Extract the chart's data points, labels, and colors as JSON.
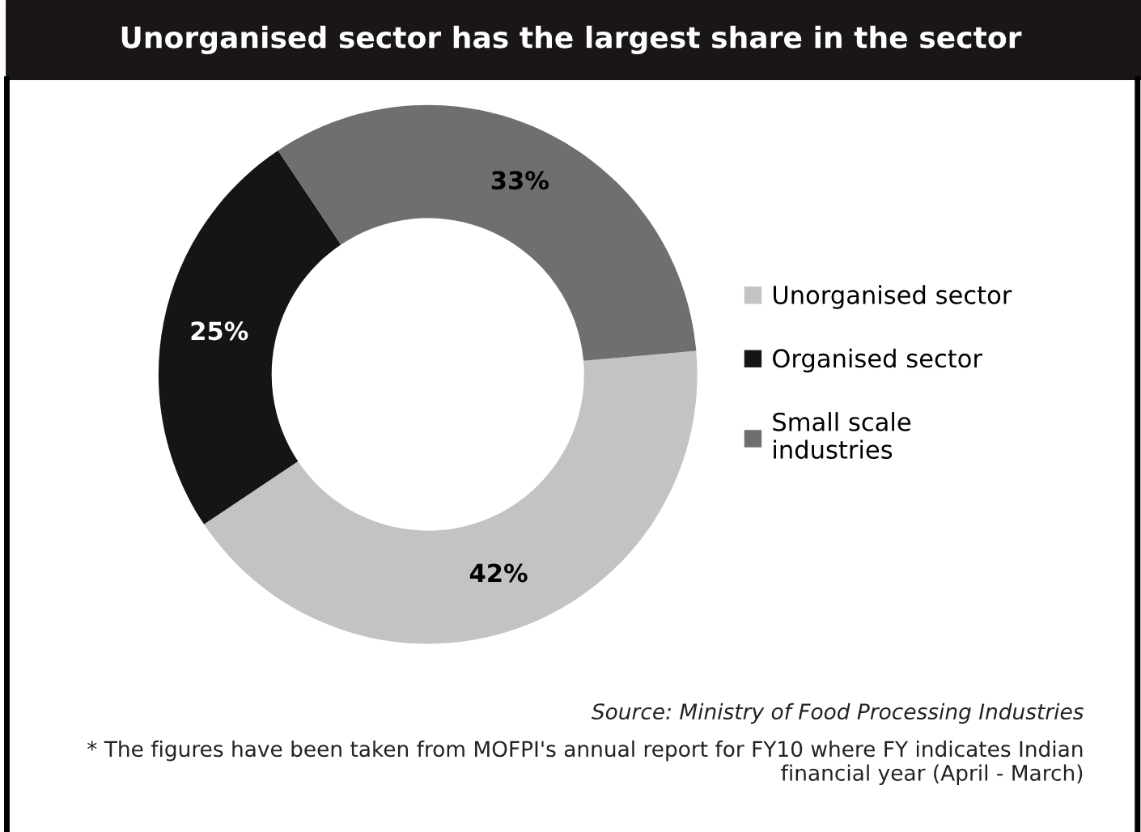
{
  "chart_data": {
    "type": "donut",
    "title": "Unorganised sector has the largest share in the sector",
    "categories": [
      "Unorganised sector",
      "Organised sector",
      "Small scale industries"
    ],
    "values": [
      42,
      25,
      33
    ],
    "colors": [
      "#c3c3c3",
      "#151515",
      "#6f6f6f"
    ],
    "value_labels": [
      "42%",
      "25%",
      "33%"
    ],
    "legend": "right",
    "annotations": [
      "Source: Ministry of Food Processing Industries",
      "* The figures have been taken from MOFPI's annual report for FY10 where FY indicates Indian financial year (April - March)"
    ]
  }
}
